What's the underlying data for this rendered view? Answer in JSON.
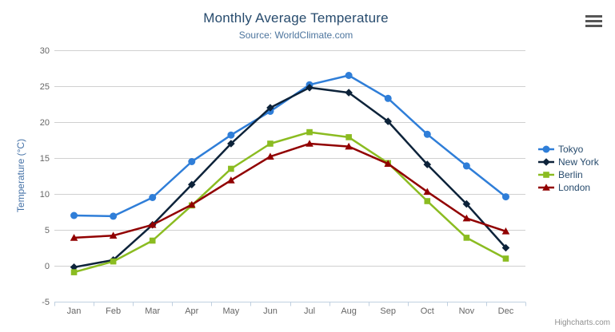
{
  "chart_data": {
    "type": "line",
    "title": "Monthly Average Temperature",
    "subtitle": "Source: WorldClimate.com",
    "categories": [
      "Jan",
      "Feb",
      "Mar",
      "Apr",
      "May",
      "Jun",
      "Jul",
      "Aug",
      "Sep",
      "Oct",
      "Nov",
      "Dec"
    ],
    "xlabel": "",
    "ylabel": "Temperature (°C)",
    "ylim": [
      -5,
      30
    ],
    "ytick_interval": 5,
    "grid": true,
    "legend_position": "right",
    "series": [
      {
        "name": "Tokyo",
        "color": "#2f7ed8",
        "marker": "circle",
        "values": [
          7.0,
          6.9,
          9.5,
          14.5,
          18.2,
          21.5,
          25.2,
          26.5,
          23.3,
          18.3,
          13.9,
          9.6
        ]
      },
      {
        "name": "New York",
        "color": "#0d233a",
        "marker": "diamond",
        "values": [
          -0.2,
          0.8,
          5.7,
          11.3,
          17.0,
          22.0,
          24.8,
          24.1,
          20.1,
          14.1,
          8.6,
          2.5
        ]
      },
      {
        "name": "Berlin",
        "color": "#8bbc21",
        "marker": "square",
        "values": [
          -0.9,
          0.6,
          3.5,
          8.4,
          13.5,
          17.0,
          18.6,
          17.9,
          14.3,
          9.0,
          3.9,
          1.0
        ]
      },
      {
        "name": "London",
        "color": "#910000",
        "marker": "triangle",
        "values": [
          3.9,
          4.2,
          5.7,
          8.5,
          11.9,
          15.2,
          17.0,
          16.6,
          14.2,
          10.3,
          6.6,
          4.8
        ]
      }
    ]
  },
  "credits": {
    "label": "Highcharts.com"
  },
  "toolbar": {
    "menu_icon": "hamburger-menu-icon"
  },
  "colors": {
    "title": "#274b6d",
    "subtitle": "#4d759e",
    "axis_label": "#666666",
    "axis_title": "#4572a7",
    "grid_line": "#d0d0d0",
    "axis_line": "#c0d0e0",
    "legend_text": "#274b6d",
    "credits": "#909090",
    "menu_icon": "#565656"
  }
}
